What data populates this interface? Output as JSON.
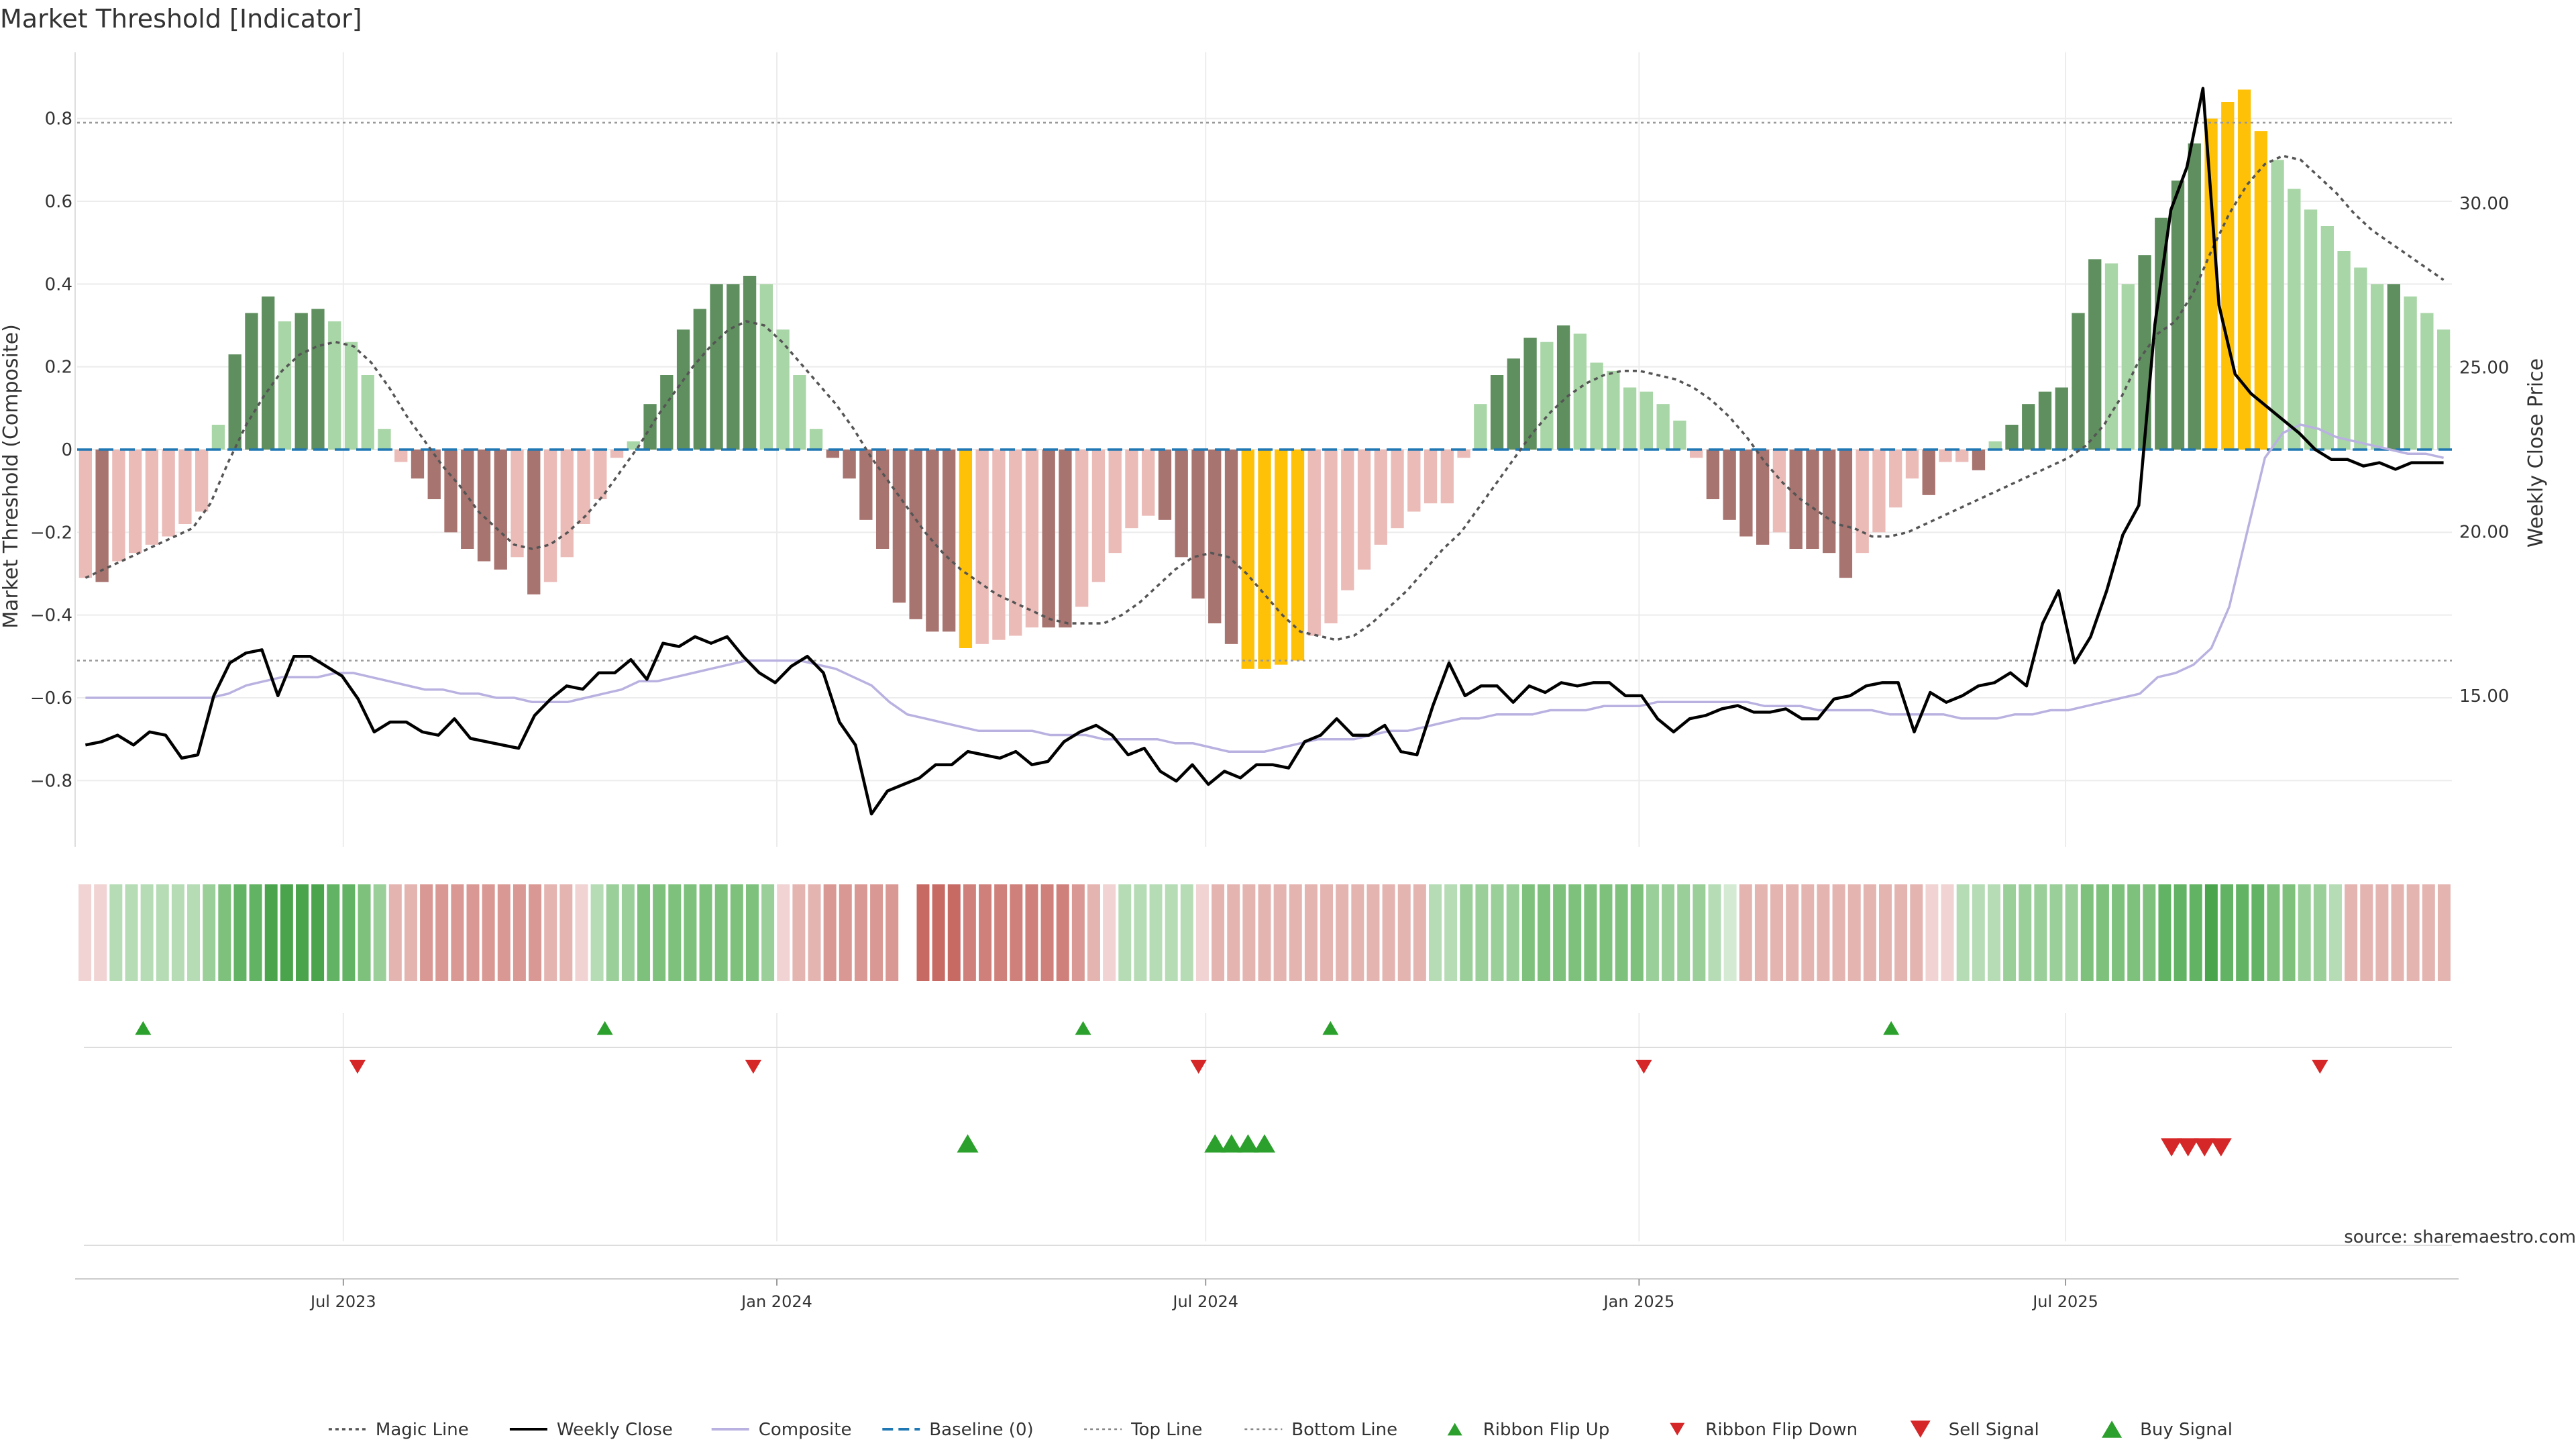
{
  "chart_data": {
    "type": "bar",
    "title": "Market Threshold [Indicator]",
    "source": "source: sharemaestro.com",
    "left_axis": {
      "label": "Market Threshold (Composite)",
      "ylim": [
        -0.96,
        0.96
      ],
      "ticks": [
        0.8,
        0.6,
        0.4,
        0.2,
        0,
        -0.2,
        -0.4,
        -0.6,
        -0.8
      ],
      "tick_labels": [
        "0.8",
        "0.6",
        "0.4",
        "0.2",
        "0",
        "−0.2",
        "−0.4",
        "−0.6",
        "−0.8"
      ]
    },
    "right_axis": {
      "label": "Weekly Close Price",
      "ylim": [
        10.4,
        34.6
      ],
      "ticks": [
        30,
        25,
        20,
        15
      ],
      "tick_labels": [
        "30.00",
        "25.00",
        "20.00",
        "15.00"
      ]
    },
    "x_axis": {
      "start": "2023-03-10",
      "end": "2025-12-12",
      "ticks": [
        "2023-07-01",
        "2024-01-01",
        "2024-07-01",
        "2025-01-01",
        "2025-07-01"
      ],
      "tick_labels": [
        "Jul 2023",
        "Jan 2024",
        "Jul 2024",
        "Jan 2025",
        "Jul 2025"
      ]
    },
    "top_line": 0.79,
    "bottom_line": -0.51,
    "baseline": 0,
    "colors": {
      "bull_strong": "#5f8f5f",
      "bull_weak": "#a9d6a7",
      "bear_strong": "#a87470",
      "bear_weak": "#ebbbb8",
      "extreme": "#ffc107",
      "magic_line": "#555555",
      "weekly_close": "#000000",
      "composite": "#b9b1e0",
      "baseline": "#1f77b4",
      "buy": "#2ca02c",
      "sell": "#d62728"
    },
    "bars": [
      {
        "v": -0.31,
        "c": "bw"
      },
      {
        "v": -0.32,
        "c": "bs"
      },
      {
        "v": -0.27,
        "c": "bw"
      },
      {
        "v": -0.25,
        "c": "bw"
      },
      {
        "v": -0.23,
        "c": "bw"
      },
      {
        "v": -0.21,
        "c": "bw"
      },
      {
        "v": -0.18,
        "c": "bw"
      },
      {
        "v": -0.15,
        "c": "bw"
      },
      {
        "v": 0.06,
        "c": "gw"
      },
      {
        "v": 0.23,
        "c": "gs"
      },
      {
        "v": 0.33,
        "c": "gs"
      },
      {
        "v": 0.37,
        "c": "gs"
      },
      {
        "v": 0.31,
        "c": "gw"
      },
      {
        "v": 0.33,
        "c": "gs"
      },
      {
        "v": 0.34,
        "c": "gs"
      },
      {
        "v": 0.31,
        "c": "gw"
      },
      {
        "v": 0.26,
        "c": "gw"
      },
      {
        "v": 0.18,
        "c": "gw"
      },
      {
        "v": 0.05,
        "c": "gw"
      },
      {
        "v": -0.03,
        "c": "bw"
      },
      {
        "v": -0.07,
        "c": "bs"
      },
      {
        "v": -0.12,
        "c": "bs"
      },
      {
        "v": -0.2,
        "c": "bs"
      },
      {
        "v": -0.24,
        "c": "bs"
      },
      {
        "v": -0.27,
        "c": "bs"
      },
      {
        "v": -0.29,
        "c": "bs"
      },
      {
        "v": -0.26,
        "c": "bw"
      },
      {
        "v": -0.35,
        "c": "bs"
      },
      {
        "v": -0.32,
        "c": "bw"
      },
      {
        "v": -0.26,
        "c": "bw"
      },
      {
        "v": -0.18,
        "c": "bw"
      },
      {
        "v": -0.12,
        "c": "bw"
      },
      {
        "v": -0.02,
        "c": "bw"
      },
      {
        "v": 0.02,
        "c": "gw"
      },
      {
        "v": 0.11,
        "c": "gs"
      },
      {
        "v": 0.18,
        "c": "gs"
      },
      {
        "v": 0.29,
        "c": "gs"
      },
      {
        "v": 0.34,
        "c": "gs"
      },
      {
        "v": 0.4,
        "c": "gs"
      },
      {
        "v": 0.4,
        "c": "gs"
      },
      {
        "v": 0.42,
        "c": "gs"
      },
      {
        "v": 0.4,
        "c": "gw"
      },
      {
        "v": 0.29,
        "c": "gw"
      },
      {
        "v": 0.18,
        "c": "gw"
      },
      {
        "v": 0.05,
        "c": "gw"
      },
      {
        "v": -0.02,
        "c": "bs"
      },
      {
        "v": -0.07,
        "c": "bs"
      },
      {
        "v": -0.17,
        "c": "bs"
      },
      {
        "v": -0.24,
        "c": "bs"
      },
      {
        "v": -0.37,
        "c": "bs"
      },
      {
        "v": -0.41,
        "c": "bs"
      },
      {
        "v": -0.44,
        "c": "bs"
      },
      {
        "v": -0.44,
        "c": "bs"
      },
      {
        "v": -0.48,
        "c": "ex"
      },
      {
        "v": -0.47,
        "c": "bw"
      },
      {
        "v": -0.46,
        "c": "bw"
      },
      {
        "v": -0.45,
        "c": "bw"
      },
      {
        "v": -0.43,
        "c": "bw"
      },
      {
        "v": -0.43,
        "c": "bs"
      },
      {
        "v": -0.43,
        "c": "bs"
      },
      {
        "v": -0.38,
        "c": "bw"
      },
      {
        "v": -0.32,
        "c": "bw"
      },
      {
        "v": -0.25,
        "c": "bw"
      },
      {
        "v": -0.19,
        "c": "bw"
      },
      {
        "v": -0.16,
        "c": "bw"
      },
      {
        "v": -0.17,
        "c": "bs"
      },
      {
        "v": -0.26,
        "c": "bs"
      },
      {
        "v": -0.36,
        "c": "bs"
      },
      {
        "v": -0.42,
        "c": "bs"
      },
      {
        "v": -0.47,
        "c": "bs"
      },
      {
        "v": -0.53,
        "c": "ex"
      },
      {
        "v": -0.53,
        "c": "ex"
      },
      {
        "v": -0.52,
        "c": "ex"
      },
      {
        "v": -0.51,
        "c": "ex"
      },
      {
        "v": -0.45,
        "c": "bw"
      },
      {
        "v": -0.42,
        "c": "bw"
      },
      {
        "v": -0.34,
        "c": "bw"
      },
      {
        "v": -0.29,
        "c": "bw"
      },
      {
        "v": -0.23,
        "c": "bw"
      },
      {
        "v": -0.19,
        "c": "bw"
      },
      {
        "v": -0.15,
        "c": "bw"
      },
      {
        "v": -0.13,
        "c": "bw"
      },
      {
        "v": -0.13,
        "c": "bw"
      },
      {
        "v": -0.02,
        "c": "bw"
      },
      {
        "v": 0.11,
        "c": "gw"
      },
      {
        "v": 0.18,
        "c": "gs"
      },
      {
        "v": 0.22,
        "c": "gs"
      },
      {
        "v": 0.27,
        "c": "gs"
      },
      {
        "v": 0.26,
        "c": "gw"
      },
      {
        "v": 0.3,
        "c": "gs"
      },
      {
        "v": 0.28,
        "c": "gw"
      },
      {
        "v": 0.21,
        "c": "gw"
      },
      {
        "v": 0.19,
        "c": "gw"
      },
      {
        "v": 0.15,
        "c": "gw"
      },
      {
        "v": 0.14,
        "c": "gw"
      },
      {
        "v": 0.11,
        "c": "gw"
      },
      {
        "v": 0.07,
        "c": "gw"
      },
      {
        "v": -0.02,
        "c": "bw"
      },
      {
        "v": -0.12,
        "c": "bs"
      },
      {
        "v": -0.17,
        "c": "bs"
      },
      {
        "v": -0.21,
        "c": "bs"
      },
      {
        "v": -0.23,
        "c": "bs"
      },
      {
        "v": -0.2,
        "c": "bw"
      },
      {
        "v": -0.24,
        "c": "bs"
      },
      {
        "v": -0.24,
        "c": "bs"
      },
      {
        "v": -0.25,
        "c": "bs"
      },
      {
        "v": -0.31,
        "c": "bs"
      },
      {
        "v": -0.25,
        "c": "bw"
      },
      {
        "v": -0.2,
        "c": "bw"
      },
      {
        "v": -0.14,
        "c": "bw"
      },
      {
        "v": -0.07,
        "c": "bw"
      },
      {
        "v": -0.11,
        "c": "bs"
      },
      {
        "v": -0.03,
        "c": "bw"
      },
      {
        "v": -0.03,
        "c": "bw"
      },
      {
        "v": -0.05,
        "c": "bs"
      },
      {
        "v": 0.02,
        "c": "gw"
      },
      {
        "v": 0.06,
        "c": "gs"
      },
      {
        "v": 0.11,
        "c": "gs"
      },
      {
        "v": 0.14,
        "c": "gs"
      },
      {
        "v": 0.15,
        "c": "gs"
      },
      {
        "v": 0.33,
        "c": "gs"
      },
      {
        "v": 0.46,
        "c": "gs"
      },
      {
        "v": 0.45,
        "c": "gw"
      },
      {
        "v": 0.4,
        "c": "gw"
      },
      {
        "v": 0.47,
        "c": "gs"
      },
      {
        "v": 0.56,
        "c": "gs"
      },
      {
        "v": 0.65,
        "c": "gs"
      },
      {
        "v": 0.74,
        "c": "gs"
      },
      {
        "v": 0.8,
        "c": "ex"
      },
      {
        "v": 0.84,
        "c": "ex"
      },
      {
        "v": 0.87,
        "c": "ex"
      },
      {
        "v": 0.77,
        "c": "ex"
      },
      {
        "v": 0.7,
        "c": "gw"
      },
      {
        "v": 0.63,
        "c": "gw"
      },
      {
        "v": 0.58,
        "c": "gw"
      },
      {
        "v": 0.54,
        "c": "gw"
      },
      {
        "v": 0.48,
        "c": "gw"
      },
      {
        "v": 0.44,
        "c": "gw"
      },
      {
        "v": 0.4,
        "c": "gw"
      },
      {
        "v": 0.4,
        "c": "gs"
      },
      {
        "v": 0.37,
        "c": "gw"
      },
      {
        "v": 0.33,
        "c": "gw"
      },
      {
        "v": 0.29,
        "c": "gw"
      }
    ],
    "magic_line": [
      -0.31,
      -0.29,
      -0.27,
      -0.25,
      -0.23,
      -0.21,
      -0.19,
      -0.13,
      -0.03,
      0.06,
      0.13,
      0.19,
      0.23,
      0.25,
      0.26,
      0.25,
      0.21,
      0.15,
      0.08,
      0.02,
      -0.04,
      -0.09,
      -0.15,
      -0.19,
      -0.23,
      -0.24,
      -0.23,
      -0.2,
      -0.16,
      -0.11,
      -0.05,
      0.01,
      0.08,
      0.14,
      0.2,
      0.25,
      0.29,
      0.31,
      0.3,
      0.26,
      0.21,
      0.16,
      0.11,
      0.05,
      -0.02,
      -0.08,
      -0.14,
      -0.2,
      -0.25,
      -0.29,
      -0.32,
      -0.35,
      -0.37,
      -0.39,
      -0.41,
      -0.42,
      -0.42,
      -0.42,
      -0.4,
      -0.37,
      -0.33,
      -0.29,
      -0.26,
      -0.25,
      -0.26,
      -0.3,
      -0.35,
      -0.4,
      -0.44,
      -0.45,
      -0.46,
      -0.45,
      -0.42,
      -0.38,
      -0.34,
      -0.29,
      -0.24,
      -0.2,
      -0.14,
      -0.08,
      -0.02,
      0.04,
      0.09,
      0.13,
      0.16,
      0.18,
      0.19,
      0.19,
      0.18,
      0.17,
      0.15,
      0.12,
      0.08,
      0.03,
      -0.03,
      -0.08,
      -0.12,
      -0.15,
      -0.18,
      -0.19,
      -0.21,
      -0.21,
      -0.2,
      -0.18,
      -0.16,
      -0.14,
      -0.12,
      -0.1,
      -0.08,
      -0.06,
      -0.04,
      -0.02,
      0.01,
      0.06,
      0.13,
      0.22,
      0.28,
      0.31,
      0.38,
      0.48,
      0.57,
      0.64,
      0.69,
      0.71,
      0.7,
      0.66,
      0.62,
      0.57,
      0.53,
      0.5,
      0.47,
      0.44,
      0.41
    ],
    "composite": [
      -0.6,
      -0.6,
      -0.6,
      -0.6,
      -0.6,
      -0.6,
      -0.6,
      -0.6,
      -0.59,
      -0.57,
      -0.56,
      -0.55,
      -0.55,
      -0.55,
      -0.54,
      -0.54,
      -0.55,
      -0.56,
      -0.57,
      -0.58,
      -0.58,
      -0.59,
      -0.59,
      -0.6,
      -0.6,
      -0.61,
      -0.61,
      -0.61,
      -0.6,
      -0.59,
      -0.58,
      -0.56,
      -0.56,
      -0.55,
      -0.54,
      -0.53,
      -0.52,
      -0.51,
      -0.51,
      -0.51,
      -0.51,
      -0.52,
      -0.53,
      -0.55,
      -0.57,
      -0.61,
      -0.64,
      -0.65,
      -0.66,
      -0.67,
      -0.68,
      -0.68,
      -0.68,
      -0.68,
      -0.69,
      -0.69,
      -0.69,
      -0.7,
      -0.7,
      -0.7,
      -0.7,
      -0.71,
      -0.71,
      -0.72,
      -0.73,
      -0.73,
      -0.73,
      -0.72,
      -0.71,
      -0.7,
      -0.7,
      -0.7,
      -0.69,
      -0.68,
      -0.68,
      -0.67,
      -0.66,
      -0.65,
      -0.65,
      -0.64,
      -0.64,
      -0.64,
      -0.63,
      -0.63,
      -0.63,
      -0.62,
      -0.62,
      -0.62,
      -0.61,
      -0.61,
      -0.61,
      -0.61,
      -0.61,
      -0.61,
      -0.62,
      -0.62,
      -0.62,
      -0.63,
      -0.63,
      -0.63,
      -0.63,
      -0.64,
      -0.64,
      -0.64,
      -0.64,
      -0.65,
      -0.65,
      -0.65,
      -0.64,
      -0.64,
      -0.63,
      -0.63,
      -0.62,
      -0.61,
      -0.6,
      -0.59,
      -0.55,
      -0.54,
      -0.52,
      -0.48,
      -0.38,
      -0.2,
      -0.02,
      0.04,
      0.06,
      0.05,
      0.03,
      0.02,
      0.01,
      0.0,
      -0.01,
      -0.01,
      -0.02
    ],
    "weekly_close": [
      13.5,
      13.6,
      13.8,
      13.5,
      13.9,
      13.8,
      13.1,
      13.2,
      15.0,
      16.0,
      16.3,
      16.4,
      15.0,
      16.2,
      16.2,
      15.9,
      15.6,
      14.9,
      13.9,
      14.2,
      14.2,
      13.9,
      13.8,
      14.3,
      13.7,
      13.6,
      13.5,
      13.4,
      14.4,
      14.9,
      15.3,
      15.2,
      15.7,
      15.7,
      16.1,
      15.5,
      16.6,
      16.5,
      16.8,
      16.6,
      16.8,
      16.2,
      15.7,
      15.4,
      15.9,
      16.2,
      15.7,
      14.2,
      13.5,
      11.4,
      12.1,
      12.3,
      12.5,
      12.9,
      12.9,
      13.3,
      13.2,
      13.1,
      13.3,
      12.9,
      13.0,
      13.6,
      13.9,
      14.1,
      13.8,
      13.2,
      13.4,
      12.7,
      12.4,
      12.9,
      12.3,
      12.7,
      12.5,
      12.9,
      12.9,
      12.8,
      13.6,
      13.8,
      14.3,
      13.8,
      13.8,
      14.1,
      13.3,
      13.2,
      14.7,
      16.0,
      15.0,
      15.3,
      15.3,
      14.8,
      15.3,
      15.1,
      15.4,
      15.3,
      15.4,
      15.4,
      15.0,
      15.0,
      14.3,
      13.9,
      14.3,
      14.4,
      14.6,
      14.7,
      14.5,
      14.5,
      14.6,
      14.3,
      14.3,
      14.9,
      15.0,
      15.3,
      15.4,
      15.4,
      13.9,
      15.1,
      14.8,
      15.0,
      15.3,
      15.4,
      15.7,
      15.3,
      17.2,
      18.2,
      16.0,
      16.8,
      18.2,
      19.9,
      20.8,
      26.3,
      29.8,
      31.1,
      33.5,
      26.9,
      24.8,
      24.2,
      23.8,
      23.4,
      23.0,
      22.5,
      22.2,
      22.2,
      22.0,
      22.1,
      21.9,
      22.1,
      22.1,
      22.1
    ],
    "ribbon": [
      "r1",
      "r1",
      "g2",
      "g2",
      "g2",
      "g2",
      "g2",
      "g2",
      "g3",
      "g4",
      "g5",
      "g5",
      "g6",
      "g6",
      "g6",
      "g6",
      "g5",
      "g5",
      "g4",
      "g3",
      "r2",
      "r2",
      "r3",
      "r3",
      "r3",
      "r3",
      "r3",
      "r3",
      "r3",
      "r3",
      "r2",
      "r2",
      "r1",
      "g2",
      "g3",
      "g3",
      "g4",
      "g4",
      "g4",
      "g4",
      "g4",
      "g4",
      "g4",
      "g4",
      "g3",
      "r1",
      "r2",
      "r2",
      "r3",
      "r3",
      "r3",
      "r3",
      "r3",
      "gap",
      "r5",
      "r5",
      "r5",
      "r4",
      "r4",
      "r4",
      "r4",
      "r4",
      "r4",
      "r4",
      "r3",
      "r2",
      "r1",
      "g2",
      "g2",
      "g2",
      "g2",
      "g2",
      "r1",
      "r2",
      "r2",
      "r2",
      "r2",
      "r2",
      "r2",
      "r2",
      "r2",
      "r2",
      "r2",
      "r2",
      "r2",
      "r2",
      "r2",
      "g2",
      "g2",
      "g3",
      "g3",
      "g3",
      "g3",
      "g4",
      "g4",
      "g4",
      "g4",
      "g4",
      "g4",
      "g4",
      "g4",
      "g3",
      "g3",
      "g3",
      "g3",
      "g2",
      "g1",
      "r2",
      "r2",
      "r2",
      "r2",
      "r2",
      "r2",
      "r2",
      "r2",
      "r2",
      "r2",
      "r2",
      "r2",
      "r1",
      "r1",
      "g2",
      "g2",
      "g2",
      "g3",
      "g3",
      "g3",
      "g3",
      "g3",
      "g4",
      "g4",
      "g4",
      "g4",
      "g4",
      "g5",
      "g5",
      "g5",
      "g6",
      "g5",
      "g5",
      "g5",
      "g4",
      "g4",
      "g3",
      "g3",
      "g2",
      "r2",
      "r2",
      "r2",
      "r2",
      "r2",
      "r2",
      "r2"
    ],
    "ribbon_flip_up": [
      "2023-04-07",
      "2023-10-20",
      "2024-05-10",
      "2024-08-23",
      "2025-04-18"
    ],
    "ribbon_flip_down": [
      "2023-07-07",
      "2023-12-22",
      "2024-06-28",
      "2025-01-03",
      "2025-10-17"
    ],
    "buy_signal": [
      "2024-03-22",
      "2024-07-05",
      "2024-07-12",
      "2024-07-19",
      "2024-07-26"
    ],
    "sell_signal": [
      "2025-08-15",
      "2025-08-22",
      "2025-08-29",
      "2025-09-05"
    ],
    "legend": [
      {
        "label": "Magic Line",
        "kind": "dotted",
        "color": "#555555"
      },
      {
        "label": "Weekly Close",
        "kind": "solid",
        "color": "#000000"
      },
      {
        "label": "Composite",
        "kind": "solid",
        "color": "#b9b1e0"
      },
      {
        "label": "Baseline (0)",
        "kind": "dashed",
        "color": "#1f77b4"
      },
      {
        "label": "Top Line",
        "kind": "dotted-light",
        "color": "#888888"
      },
      {
        "label": "Bottom Line",
        "kind": "dotted-light",
        "color": "#888888"
      },
      {
        "label": "Ribbon Flip Up",
        "kind": "tri-up-small",
        "color": "#2ca02c"
      },
      {
        "label": "Ribbon Flip Down",
        "kind": "tri-down-small",
        "color": "#d62728"
      },
      {
        "label": "Sell Signal",
        "kind": "tri-down",
        "color": "#d62728"
      },
      {
        "label": "Buy Signal",
        "kind": "tri-up",
        "color": "#2ca02c"
      }
    ]
  }
}
